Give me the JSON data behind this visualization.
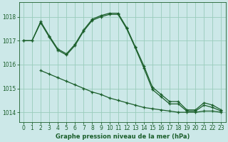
{
  "title": "Graphe pression niveau de la mer (hPa)",
  "bg_color": "#cce8e8",
  "grid_color": "#99ccbb",
  "line_color": "#1a5e2a",
  "xlim": [
    -0.5,
    23.5
  ],
  "ylim": [
    1013.6,
    1018.6
  ],
  "yticks": [
    1014,
    1015,
    1016,
    1017,
    1018
  ],
  "xticks": [
    0,
    1,
    2,
    3,
    4,
    5,
    6,
    7,
    8,
    9,
    10,
    11,
    12,
    13,
    14,
    15,
    16,
    17,
    18,
    19,
    20,
    21,
    22,
    23
  ],
  "line1": {
    "x": [
      0,
      1,
      2,
      3,
      4,
      5,
      6,
      7,
      8,
      9,
      10,
      11,
      12,
      13,
      14,
      15,
      16,
      17,
      18,
      19,
      20,
      21,
      22,
      23
    ],
    "y": [
      1017.0,
      1017.0,
      1017.8,
      1017.2,
      1016.65,
      1016.45,
      1016.85,
      1017.45,
      1017.9,
      1018.05,
      1018.15,
      1018.15,
      1017.55,
      1016.75,
      1015.95,
      1015.05,
      1014.75,
      1014.45,
      1014.45,
      1014.1,
      1014.1,
      1014.4,
      1014.3,
      1014.1
    ]
  },
  "line2": {
    "x": [
      0,
      1,
      2,
      3,
      4,
      5,
      6,
      7,
      8,
      9,
      10,
      11,
      12,
      13,
      14,
      15,
      16,
      17,
      18,
      19,
      20,
      21,
      22,
      23
    ],
    "y": [
      1017.0,
      1017.0,
      1017.75,
      1017.15,
      1016.6,
      1016.4,
      1016.8,
      1017.4,
      1017.85,
      1018.0,
      1018.1,
      1018.1,
      1017.5,
      1016.7,
      1015.85,
      1014.95,
      1014.65,
      1014.35,
      1014.35,
      1014.05,
      1014.05,
      1014.3,
      1014.2,
      1014.05
    ]
  },
  "line3": {
    "x": [
      2,
      3,
      4,
      5,
      6,
      7,
      8,
      9,
      10,
      11,
      12,
      13,
      14,
      15,
      16,
      17,
      18,
      19,
      20,
      21,
      22,
      23
    ],
    "y": [
      1015.75,
      1015.6,
      1015.45,
      1015.3,
      1015.15,
      1015.0,
      1014.85,
      1014.75,
      1014.6,
      1014.5,
      1014.4,
      1014.3,
      1014.2,
      1014.15,
      1014.1,
      1014.05,
      1014.0,
      1014.0,
      1014.0,
      1014.05,
      1014.05,
      1014.0
    ]
  }
}
